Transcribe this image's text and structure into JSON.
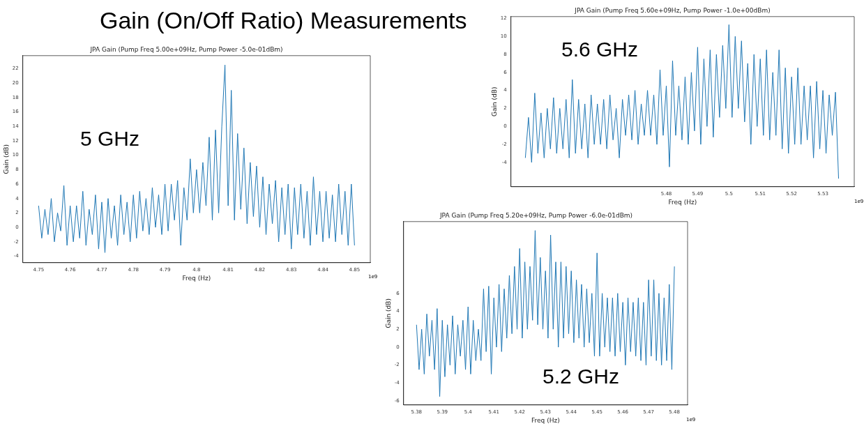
{
  "chart_data": [
    {
      "type": "line",
      "title": "JPA Gain (Pump Freq 5.00e+09Hz, Pump Power -5.0e-01dBm)",
      "xlabel": "Freq (Hz)",
      "ylabel": "Gain (dB)",
      "annotations": [
        "Gain (On/Off Ratio) Measurements",
        "5 GHz",
        "1e9"
      ],
      "xlim": [
        4.745,
        4.855
      ],
      "xticks": [
        4.75,
        4.76,
        4.77,
        4.78,
        4.79,
        4.8,
        4.81,
        4.82,
        4.83,
        4.84,
        4.85
      ],
      "ylim": [
        -4.9,
        23.8
      ],
      "yticks": [
        -4,
        -2,
        0,
        2,
        4,
        6,
        8,
        10,
        12,
        14,
        16,
        18,
        20,
        22
      ],
      "grid": false,
      "marker": "none",
      "line_style": "solid",
      "series": [
        {
          "color": "#1f77b4",
          "x": [
            4.75,
            4.751,
            4.752,
            4.753,
            4.754,
            4.755,
            4.756,
            4.757,
            4.758,
            4.759,
            4.76,
            4.761,
            4.762,
            4.763,
            4.764,
            4.765,
            4.766,
            4.767,
            4.768,
            4.769,
            4.77,
            4.771,
            4.772,
            4.773,
            4.774,
            4.775,
            4.776,
            4.777,
            4.778,
            4.779,
            4.78,
            4.781,
            4.782,
            4.783,
            4.784,
            4.785,
            4.786,
            4.787,
            4.788,
            4.789,
            4.79,
            4.791,
            4.792,
            4.793,
            4.794,
            4.795,
            4.796,
            4.797,
            4.798,
            4.799,
            4.8,
            4.801,
            4.802,
            4.803,
            4.804,
            4.805,
            4.806,
            4.807,
            4.808,
            4.809,
            4.81,
            4.811,
            4.812,
            4.813,
            4.814,
            4.815,
            4.816,
            4.817,
            4.818,
            4.819,
            4.82,
            4.821,
            4.822,
            4.823,
            4.824,
            4.825,
            4.826,
            4.827,
            4.828,
            4.829,
            4.83,
            4.831,
            4.832,
            4.833,
            4.834,
            4.835,
            4.836,
            4.837,
            4.838,
            4.839,
            4.84,
            4.841,
            4.842,
            4.843,
            4.844,
            4.845,
            4.846,
            4.847,
            4.848,
            4.849,
            4.85
          ],
          "values": [
            3,
            -1.5,
            2.5,
            -1,
            4,
            -2,
            2,
            -0.5,
            5.8,
            -2.5,
            3,
            -2,
            3,
            -1.5,
            5,
            -2.5,
            2.5,
            -1,
            4.5,
            -3,
            3.5,
            -3.5,
            4,
            -1.5,
            3,
            -2.5,
            4.5,
            -1,
            3.5,
            -2,
            4.5,
            -1.5,
            5,
            -0.5,
            4,
            -1,
            5.5,
            0,
            4.5,
            -1,
            6,
            -0.5,
            6,
            1,
            6.5,
            -2.5,
            5.5,
            1,
            9.5,
            2,
            8,
            2,
            9,
            3,
            12.5,
            1,
            13.5,
            2,
            14,
            22.5,
            3,
            19,
            1,
            13,
            2.5,
            11,
            0.5,
            9,
            1.5,
            8.5,
            0,
            7,
            -1,
            6,
            0.5,
            6.5,
            -2,
            5.5,
            -1,
            6,
            -3,
            5.5,
            -1,
            6,
            -1.5,
            5,
            -2.5,
            7,
            -1,
            5,
            -2,
            5,
            -1.5,
            4.5,
            -2,
            6,
            -1,
            5,
            -2.5,
            6,
            -2.5
          ]
        }
      ]
    },
    {
      "type": "line",
      "title": "JPA Gain (Pump Freq 5.60e+09Hz, Pump Power -1.0e+00dBm)",
      "xlabel": "Freq (Hz)",
      "ylabel": "Gain (dB)",
      "annotations": [
        "5.6 GHz",
        "1e9"
      ],
      "xlim": [
        5.4304,
        5.54
      ],
      "xticks": [
        5.48,
        5.49,
        5.5,
        5.51,
        5.52,
        5.53
      ],
      "ylim": [
        -6.7,
        12.2
      ],
      "yticks": [
        -4,
        -2,
        0,
        2,
        4,
        6,
        8,
        10,
        12
      ],
      "grid": false,
      "marker": "none",
      "line_style": "solid",
      "series": [
        {
          "color": "#1f77b4",
          "x": [
            5.435,
            5.436,
            5.437,
            5.438,
            5.439,
            5.44,
            5.441,
            5.442,
            5.443,
            5.444,
            5.445,
            5.446,
            5.447,
            5.448,
            5.449,
            5.45,
            5.451,
            5.452,
            5.453,
            5.454,
            5.455,
            5.456,
            5.457,
            5.458,
            5.459,
            5.46,
            5.461,
            5.462,
            5.463,
            5.464,
            5.465,
            5.466,
            5.467,
            5.468,
            5.469,
            5.47,
            5.471,
            5.472,
            5.473,
            5.474,
            5.475,
            5.476,
            5.477,
            5.478,
            5.479,
            5.48,
            5.481,
            5.482,
            5.483,
            5.484,
            5.485,
            5.486,
            5.487,
            5.488,
            5.489,
            5.49,
            5.491,
            5.492,
            5.493,
            5.494,
            5.495,
            5.496,
            5.497,
            5.498,
            5.499,
            5.5,
            5.501,
            5.502,
            5.503,
            5.504,
            5.505,
            5.506,
            5.507,
            5.508,
            5.509,
            5.51,
            5.511,
            5.512,
            5.513,
            5.514,
            5.515,
            5.516,
            5.517,
            5.518,
            5.519,
            5.52,
            5.521,
            5.522,
            5.523,
            5.524,
            5.525,
            5.526,
            5.527,
            5.528,
            5.529,
            5.53,
            5.531,
            5.532,
            5.533,
            5.534,
            5.535
          ],
          "values": [
            -3.5,
            1,
            -4,
            3.7,
            -3,
            1.5,
            -3.5,
            2,
            -2.5,
            3.2,
            -3,
            2,
            -2.5,
            3,
            -3.5,
            5.2,
            -3,
            3,
            -2.5,
            2.5,
            -3.5,
            3.5,
            -2,
            2.5,
            -2,
            3,
            -2.5,
            3.5,
            -1.5,
            2,
            -3.5,
            3,
            -1,
            3.5,
            -1.5,
            4,
            -2,
            2.5,
            -1,
            4,
            -1,
            3.5,
            -2,
            6.3,
            -1,
            4.5,
            -4.5,
            7.3,
            -1,
            4.5,
            -1.5,
            5.5,
            -2,
            6,
            -0.5,
            8.8,
            -2,
            7.5,
            0,
            8.5,
            -1.2,
            8,
            1,
            9,
            2,
            11.3,
            1,
            10,
            2,
            9.5,
            0.5,
            7,
            -2,
            8,
            0,
            7.5,
            -1,
            8.5,
            -1.5,
            6,
            -1,
            8.5,
            -2.5,
            6.5,
            -3,
            5.5,
            -2,
            6.5,
            -2,
            4.5,
            -1.5,
            4.5,
            -3.5,
            5,
            -2.5,
            4,
            -3,
            3.5,
            -1,
            3.8,
            -5.8
          ]
        }
      ]
    },
    {
      "type": "line",
      "title": "JPA Gain (Pump Freq 5.20e+09Hz, Pump Power -6.0e-01dBm)",
      "xlabel": "Freq (Hz)",
      "ylabel": "Gain (dB)",
      "annotations": [
        "5.2 GHz",
        "1e9"
      ],
      "xlim": [
        5.375,
        5.4851
      ],
      "xticks": [
        5.38,
        5.39,
        5.4,
        5.41,
        5.42,
        5.43,
        5.44,
        5.45,
        5.46,
        5.47,
        5.48
      ],
      "ylim": [
        -6.44,
        14
      ],
      "yticks": [
        -6,
        -4,
        -2,
        0,
        2,
        4,
        6
      ],
      "grid": false,
      "marker": "none",
      "line_style": "solid",
      "series": [
        {
          "color": "#1f77b4",
          "x": [
            5.38,
            5.381,
            5.382,
            5.383,
            5.384,
            5.385,
            5.386,
            5.387,
            5.388,
            5.389,
            5.39,
            5.391,
            5.392,
            5.393,
            5.394,
            5.395,
            5.396,
            5.397,
            5.398,
            5.399,
            5.4,
            5.401,
            5.402,
            5.403,
            5.404,
            5.405,
            5.406,
            5.407,
            5.408,
            5.409,
            5.41,
            5.411,
            5.412,
            5.413,
            5.414,
            5.415,
            5.416,
            5.417,
            5.418,
            5.419,
            5.42,
            5.421,
            5.422,
            5.423,
            5.424,
            5.425,
            5.426,
            5.427,
            5.428,
            5.429,
            5.43,
            5.431,
            5.432,
            5.433,
            5.434,
            5.435,
            5.436,
            5.437,
            5.438,
            5.439,
            5.44,
            5.441,
            5.442,
            5.443,
            5.444,
            5.445,
            5.446,
            5.447,
            5.448,
            5.449,
            5.45,
            5.451,
            5.452,
            5.453,
            5.454,
            5.455,
            5.456,
            5.457,
            5.458,
            5.459,
            5.46,
            5.461,
            5.462,
            5.463,
            5.464,
            5.465,
            5.466,
            5.467,
            5.468,
            5.469,
            5.47,
            5.471,
            5.472,
            5.473,
            5.474,
            5.475,
            5.476,
            5.477,
            5.478,
            5.479,
            5.48
          ],
          "values": [
            2.5,
            -2.5,
            2,
            -3,
            3.7,
            -1,
            3,
            -2.5,
            4.3,
            -5.5,
            3,
            -3.3,
            2.5,
            -2,
            3.5,
            -3,
            2.5,
            -1,
            3,
            -2.5,
            4.5,
            -3,
            3,
            -1.5,
            2,
            -1.5,
            6.5,
            -0.5,
            6.8,
            -3,
            5.5,
            0,
            7,
            -0.5,
            6.5,
            1,
            8,
            1.5,
            9,
            2,
            11,
            1,
            9.5,
            2,
            9,
            3,
            13,
            2.5,
            10,
            2,
            8.5,
            1,
            12.5,
            2,
            9.5,
            0,
            9.5,
            1,
            9,
            1.5,
            8.5,
            0.5,
            7.5,
            1,
            7,
            0,
            6.5,
            0.5,
            6,
            -1,
            10.5,
            -1,
            6,
            0,
            5.5,
            -0.5,
            5.5,
            -1,
            6,
            -0.5,
            5,
            -2,
            5.5,
            -0.5,
            5,
            -1,
            5.5,
            -1.5,
            5,
            -2,
            7.5,
            -1,
            7.5,
            -1.5,
            6,
            -2,
            5.5,
            -1.5,
            7,
            -2.5,
            9
          ]
        }
      ]
    }
  ]
}
